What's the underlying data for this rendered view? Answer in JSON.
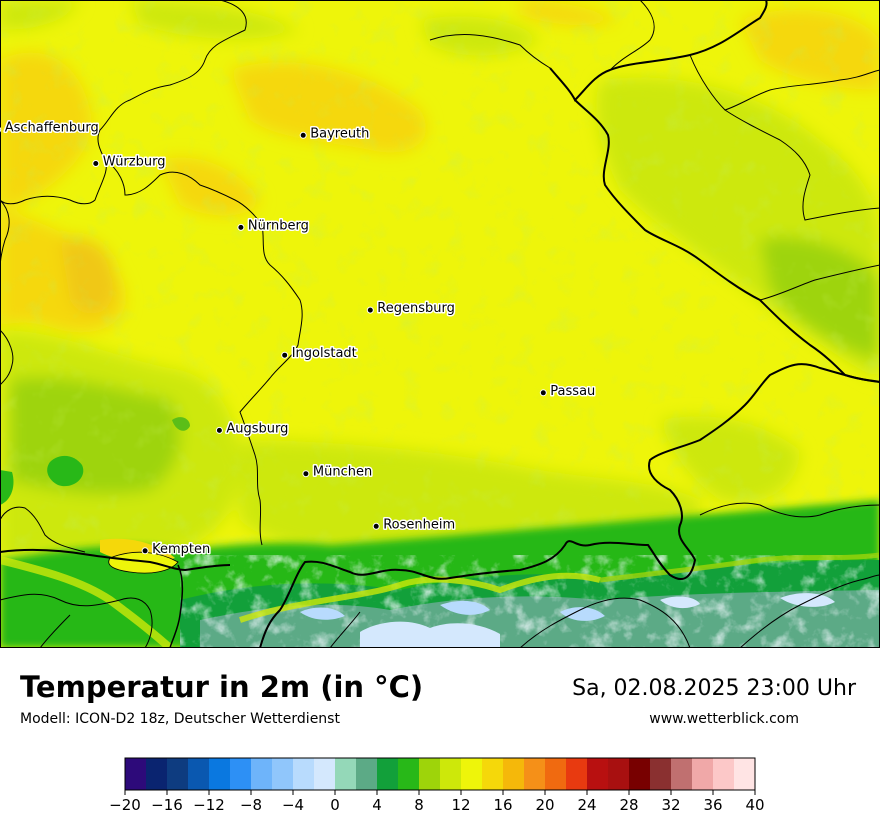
{
  "map": {
    "cities": [
      {
        "name": "Aschaffenburg",
        "lon": 9.15,
        "lat": 49.97
      },
      {
        "name": "Würzburg",
        "lon": 9.93,
        "lat": 49.79
      },
      {
        "name": "Bayreuth",
        "lon": 11.58,
        "lat": 49.94
      },
      {
        "name": "Nürnberg",
        "lon": 11.08,
        "lat": 49.45
      },
      {
        "name": "Regensburg",
        "lon": 12.1,
        "lat": 49.01
      },
      {
        "name": "Ingolstadt",
        "lon": 11.42,
        "lat": 48.77
      },
      {
        "name": "Passau",
        "lon": 13.46,
        "lat": 48.57
      },
      {
        "name": "Augsburg",
        "lon": 10.9,
        "lat": 48.37
      },
      {
        "name": "München",
        "lon": 11.58,
        "lat": 48.14
      },
      {
        "name": "Rosenheim",
        "lon": 12.13,
        "lat": 47.86
      },
      {
        "name": "Kempten",
        "lon": 10.31,
        "lat": 47.73
      }
    ]
  },
  "footer": {
    "title": "Temperatur in 2m (in °C)",
    "model": "Modell: ICON-D2 18z, Deutscher Wetterdienst",
    "datetime": "Sa, 02.08.2025 23:00 Uhr",
    "website": "www.wetterblick.com"
  },
  "legend": {
    "unit": "°C",
    "min": -20,
    "max": 40,
    "tick_labels": [
      "−20",
      "−16",
      "−12",
      "−8",
      "−4",
      "0",
      "4",
      "8",
      "12",
      "16",
      "20",
      "24",
      "28",
      "32",
      "36",
      "40"
    ],
    "colors": [
      "#2d0a7a",
      "#0a2470",
      "#0e3c80",
      "#0a58b0",
      "#0a78e0",
      "#2d90f5",
      "#6eb4fa",
      "#90c6fb",
      "#b8dbfd",
      "#d4e8fd",
      "#94d8b8",
      "#5caa86",
      "#12a03a",
      "#28b818",
      "#9ed40a",
      "#cde80a",
      "#eef50a",
      "#f5d80a",
      "#f5b80a",
      "#f59018",
      "#f06a10",
      "#e83a10",
      "#b81010",
      "#a81010",
      "#780000",
      "#8a3030",
      "#c07070",
      "#f0a8a8",
      "#fcc8c8",
      "#ffe4e4"
    ]
  }
}
